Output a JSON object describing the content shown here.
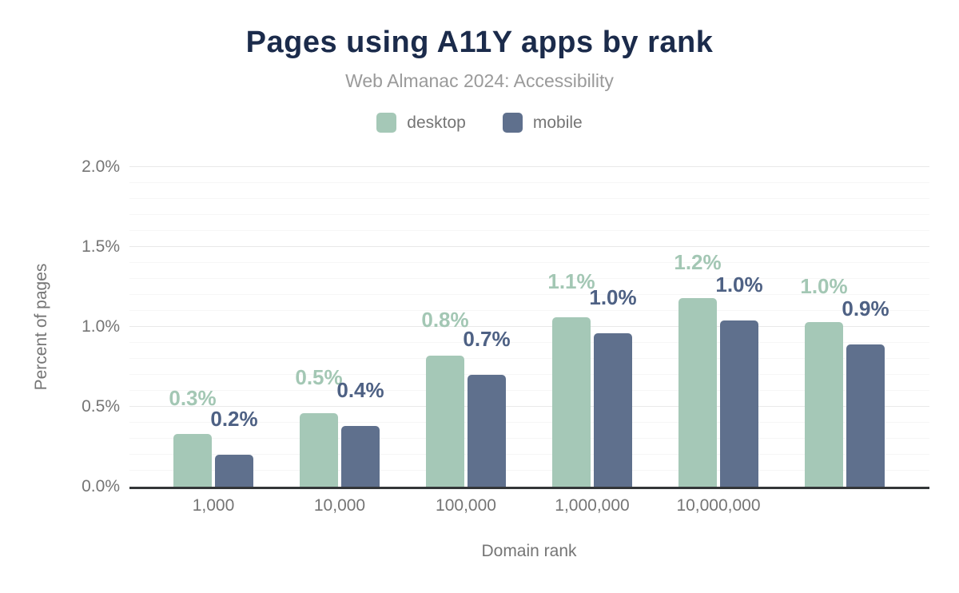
{
  "title": "Pages using A11Y apps by rank",
  "subtitle": "Web Almanac 2024: Accessibility",
  "legend": {
    "items": [
      {
        "label": "desktop",
        "color": "#a5c8b7"
      },
      {
        "label": "mobile",
        "color": "#5f708d"
      }
    ]
  },
  "y_axis": {
    "title": "Percent of pages",
    "ticks": [
      "0.0%",
      "0.5%",
      "1.0%",
      "1.5%",
      "2.0%"
    ]
  },
  "x_axis": {
    "title": "Domain rank",
    "ticks": [
      "1,000",
      "10,000",
      "100,000",
      "1,000,000",
      "10,000,000",
      ""
    ]
  },
  "colors": {
    "title": "#1b2b4b",
    "subtitle": "#9a9a9a",
    "axis_text": "#757575",
    "baseline": "#333638",
    "gridline_major": "#e9e9e9",
    "gridline_minor": "#f6f6f6"
  },
  "chart_data": {
    "type": "bar",
    "title": "Pages using A11Y apps by rank",
    "subtitle": "Web Almanac 2024: Accessibility",
    "categories": [
      "1,000",
      "10,000",
      "100,000",
      "1,000,000",
      "10,000,000",
      ""
    ],
    "series": [
      {
        "name": "desktop",
        "color": "#a5c8b7",
        "label_color": "#a3c7b4",
        "values": [
          0.33,
          0.46,
          0.82,
          1.06,
          1.18,
          1.03
        ],
        "labels": [
          "0.3%",
          "0.5%",
          "0.8%",
          "1.1%",
          "1.2%",
          "1.0%"
        ]
      },
      {
        "name": "mobile",
        "color": "#5f708d",
        "label_color": "#4e6184",
        "values": [
          0.2,
          0.38,
          0.7,
          0.96,
          1.04,
          0.89
        ],
        "labels": [
          "0.2%",
          "0.4%",
          "0.7%",
          "1.0%",
          "1.0%",
          "0.9%"
        ]
      }
    ],
    "xlabel": "Domain rank",
    "ylabel": "Percent of pages",
    "ylim": [
      0,
      2
    ],
    "y_unit": "%",
    "y_major_step": 0.5,
    "y_minor_step": 0.1,
    "grid": true,
    "legend_position": "top",
    "data_labels": true
  }
}
